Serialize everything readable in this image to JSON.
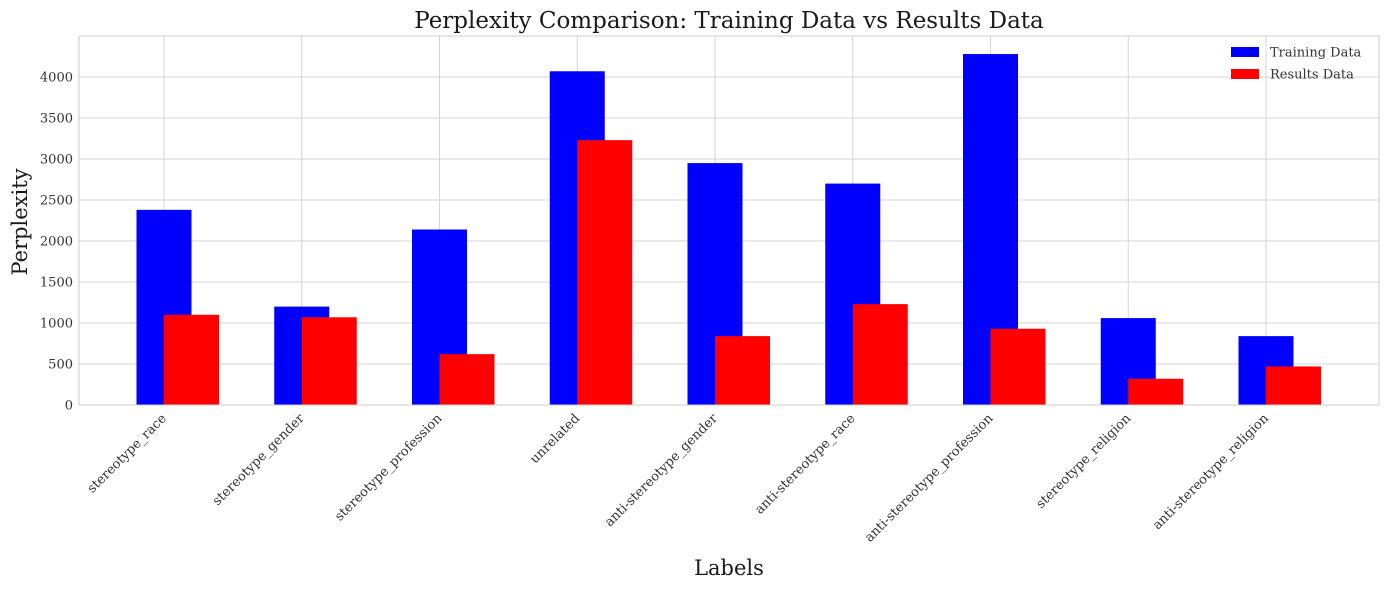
{
  "chart_data": {
    "type": "bar",
    "title": "Perplexity Comparison: Training Data vs Results Data",
    "xlabel": "Labels",
    "ylabel": "Perplexity",
    "categories": [
      "stereotype_race",
      "stereotype_gender",
      "stereotype_profession",
      "unrelated",
      "anti-stereotype_gender",
      "anti-stereotype_race",
      "anti-stereotype_profession",
      "stereotype_religion",
      "anti-stereotype_religion"
    ],
    "series": [
      {
        "name": "Training Data",
        "color": "#0000ff",
        "values": [
          2380,
          1200,
          2140,
          4070,
          2950,
          2700,
          4280,
          1060,
          840
        ]
      },
      {
        "name": "Results Data",
        "color": "#ff0000",
        "values": [
          1100,
          1070,
          620,
          3230,
          840,
          1230,
          930,
          320,
          470
        ]
      }
    ],
    "ylim": [
      0,
      4500
    ],
    "yticks": [
      0,
      500,
      1000,
      1500,
      2000,
      2500,
      3000,
      3500,
      4000
    ],
    "grid": true,
    "legend_position": "top-right"
  }
}
